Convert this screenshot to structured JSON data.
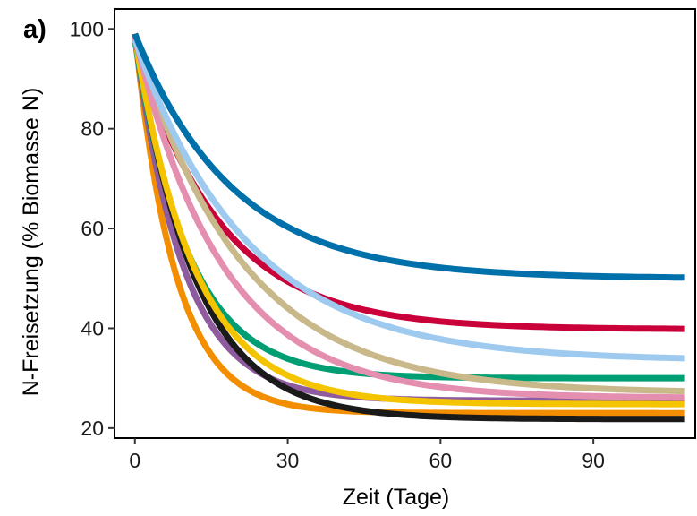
{
  "panel_label": "a)",
  "chart_data": {
    "type": "line",
    "title": "",
    "xlabel": "Zeit (Tage)",
    "ylabel": "N-Freisetzung (% Biomasse N)",
    "xlim": [
      -4,
      110
    ],
    "ylim": [
      18,
      104
    ],
    "xticks": [
      0,
      30,
      60,
      90
    ],
    "yticks": [
      20,
      40,
      60,
      80,
      100
    ],
    "grid": false,
    "legend": "none",
    "series": [
      {
        "color": "#F28E00",
        "plateau": 23.0,
        "rate": 0.125
      },
      {
        "color": "#8E5B9E",
        "plateau": 25.5,
        "rate": 0.105
      },
      {
        "color": "#009E73",
        "plateau": 30.0,
        "rate": 0.095
      },
      {
        "color": "#1A1A1A",
        "plateau": 21.8,
        "rate": 0.085
      },
      {
        "color": "#F5C400",
        "plateau": 24.8,
        "rate": 0.085
      },
      {
        "color": "#C9003A",
        "plateau": 39.8,
        "rate": 0.06
      },
      {
        "color": "#C8B88A",
        "plateau": 27.0,
        "rate": 0.048
      },
      {
        "color": "#E58FB0",
        "plateau": 26.0,
        "rate": 0.058
      },
      {
        "color": "#9FCAEF",
        "plateau": 33.5,
        "rate": 0.045
      },
      {
        "color": "#0070AA",
        "plateau": 50.0,
        "rate": 0.052
      }
    ],
    "x_start": 0,
    "x_end": 108
  }
}
